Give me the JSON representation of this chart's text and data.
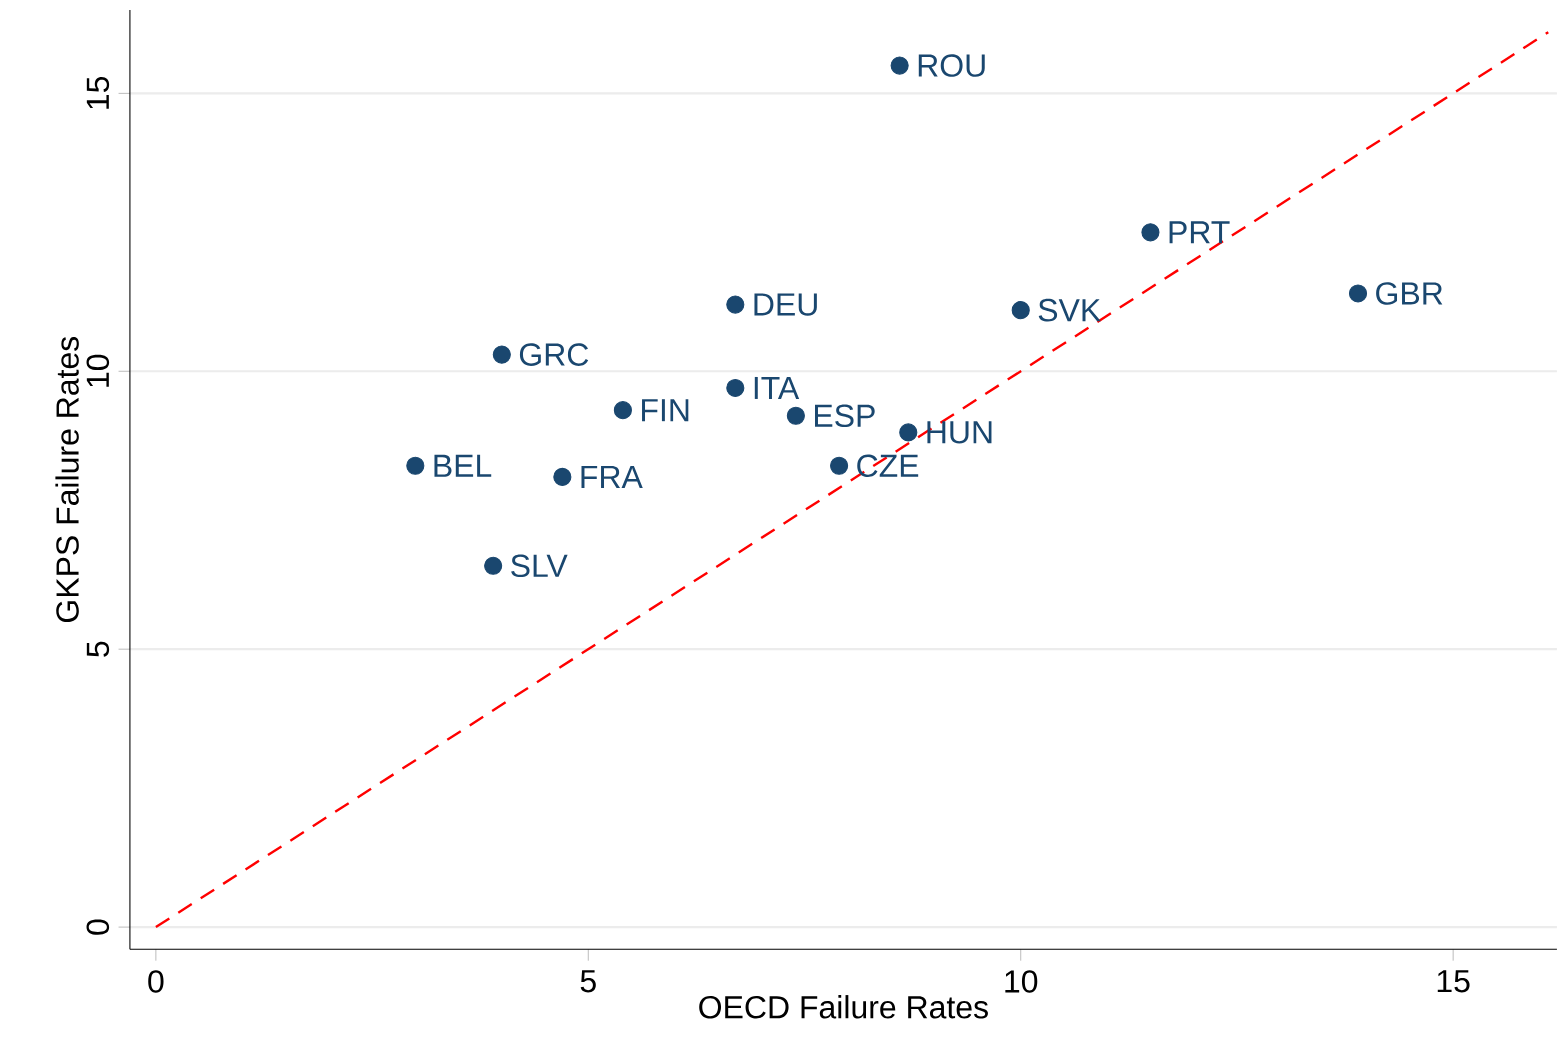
{
  "chart_data": {
    "type": "scatter",
    "xlabel": "OECD Failure Rates",
    "ylabel": "GKPS Failure Rates",
    "xlim": [
      -0.3,
      16.2
    ],
    "ylim": [
      -0.4,
      16.5
    ],
    "xticks": [
      0,
      5,
      10,
      15
    ],
    "yticks": [
      0,
      5,
      10,
      15
    ],
    "grid": "y",
    "series": [
      {
        "color": "#1a476f",
        "marker": "circle",
        "x": [
          8.6,
          11.5,
          13.9,
          6.7,
          10.0,
          4.0,
          6.7,
          5.4,
          7.4,
          8.7,
          3.0,
          7.9,
          4.7,
          3.9
        ],
        "values": [
          15.5,
          12.5,
          11.4,
          11.2,
          11.1,
          10.3,
          9.7,
          9.3,
          9.2,
          8.9,
          8.3,
          8.3,
          8.1,
          6.5
        ]
      },
      {
        "type": "line",
        "color": "#ff0000",
        "line_style": "dashed",
        "marker": "none",
        "x": [
          0,
          16.1
        ],
        "values": [
          0,
          16.1
        ]
      }
    ],
    "annotations": [
      {
        "text": "ROU",
        "x": 8.6,
        "y": 15.5
      },
      {
        "text": "PRT",
        "x": 11.5,
        "y": 12.5
      },
      {
        "text": "GBR",
        "x": 13.9,
        "y": 11.4
      },
      {
        "text": "DEU",
        "x": 6.7,
        "y": 11.2
      },
      {
        "text": "SVK",
        "x": 10.0,
        "y": 11.1
      },
      {
        "text": "GRC",
        "x": 4.0,
        "y": 10.3
      },
      {
        "text": "ITA",
        "x": 6.7,
        "y": 9.7
      },
      {
        "text": "FIN",
        "x": 5.4,
        "y": 9.3
      },
      {
        "text": "ESP",
        "x": 7.4,
        "y": 9.2
      },
      {
        "text": "HUN",
        "x": 8.7,
        "y": 8.9
      },
      {
        "text": "BEL",
        "x": 3.0,
        "y": 8.3
      },
      {
        "text": "CZE",
        "x": 7.9,
        "y": 8.3
      },
      {
        "text": "FRA",
        "x": 4.7,
        "y": 8.1
      },
      {
        "text": "SLV",
        "x": 3.9,
        "y": 6.5
      }
    ]
  }
}
